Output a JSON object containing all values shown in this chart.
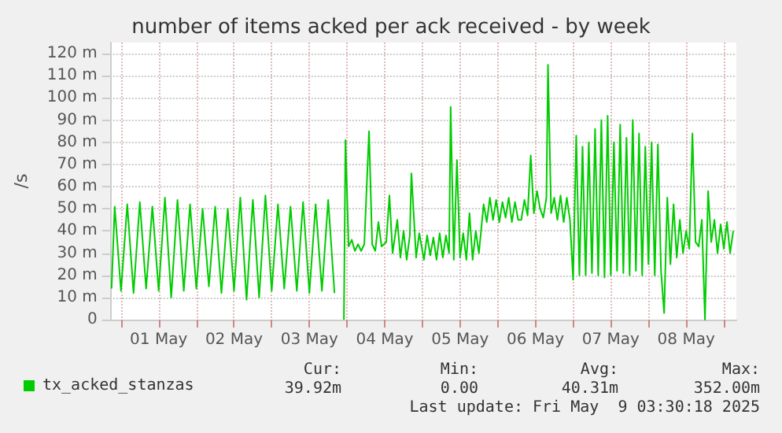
{
  "chart_data": {
    "type": "line",
    "title": "number of items acked per ack received - by week",
    "ylabel": "/s",
    "xlim": [
      "2025-04-30T20:30",
      "2025-05-09T04:00"
    ],
    "xticks": [
      {
        "value": "2025-05-01T00:00",
        "label": null
      },
      {
        "value": "2025-05-01T12:00",
        "label": "01 May"
      },
      {
        "value": "2025-05-02T00:00",
        "label": null
      },
      {
        "value": "2025-05-02T12:00",
        "label": "02 May"
      },
      {
        "value": "2025-05-03T00:00",
        "label": null
      },
      {
        "value": "2025-05-03T12:00",
        "label": "03 May"
      },
      {
        "value": "2025-05-04T00:00",
        "label": null
      },
      {
        "value": "2025-05-04T12:00",
        "label": "04 May"
      },
      {
        "value": "2025-05-05T00:00",
        "label": null
      },
      {
        "value": "2025-05-05T12:00",
        "label": "05 May"
      },
      {
        "value": "2025-05-06T00:00",
        "label": null
      },
      {
        "value": "2025-05-06T12:00",
        "label": "06 May"
      },
      {
        "value": "2025-05-07T00:00",
        "label": null
      },
      {
        "value": "2025-05-07T12:00",
        "label": "07 May"
      },
      {
        "value": "2025-05-08T00:00",
        "label": null
      },
      {
        "value": "2025-05-08T12:00",
        "label": "08 May"
      },
      {
        "value": "2025-05-09T00:00",
        "label": null
      }
    ],
    "ylim": [
      0,
      125
    ],
    "yticks": [
      0,
      {
        "value": 10,
        "label": "10 m"
      },
      {
        "value": 20,
        "label": "20 m"
      },
      {
        "value": 30,
        "label": "30 m"
      },
      {
        "value": 40,
        "label": "40 m"
      },
      {
        "value": 50,
        "label": "50 m"
      },
      {
        "value": 60,
        "label": "60 m"
      },
      {
        "value": 70,
        "label": "70 m"
      },
      {
        "value": 80,
        "label": "80 m"
      },
      {
        "value": 90,
        "label": "90 m"
      },
      {
        "value": 100,
        "label": "100 m"
      },
      {
        "value": 110,
        "label": "110 m"
      },
      {
        "value": 120,
        "label": "120 m"
      }
    ],
    "grid": true,
    "legend": "bottom left",
    "marker": "none",
    "line_style": "solid",
    "annotations": [
      "Cur:",
      "Min:",
      "Avg:",
      "Max:",
      "39.92m",
      "0.00",
      "40.31m",
      "352.00m",
      "Last update: Fri May  9 03:30:18 2025"
    ],
    "x": [
      "2025-04-30T21:00",
      "2025-04-30T22:00",
      "2025-05-01T00:00",
      "2025-05-01T02:00",
      "2025-05-01T04:00",
      "2025-05-01T06:00",
      "2025-05-01T08:00",
      "2025-05-01T10:00",
      "2025-05-01T12:00",
      "2025-05-01T14:00",
      "2025-05-01T16:00",
      "2025-05-01T18:00",
      "2025-05-01T20:00",
      "2025-05-01T22:00",
      "2025-05-02T00:00",
      "2025-05-02T02:00",
      "2025-05-02T04:00",
      "2025-05-02T06:00",
      "2025-05-02T08:00",
      "2025-05-02T10:00",
      "2025-05-02T12:00",
      "2025-05-02T14:00",
      "2025-05-02T16:00",
      "2025-05-02T18:00",
      "2025-05-02T20:00",
      "2025-05-02T22:00",
      "2025-05-03T00:00",
      "2025-05-03T02:00",
      "2025-05-03T04:00",
      "2025-05-03T06:00",
      "2025-05-03T08:00",
      "2025-05-03T10:00",
      "2025-05-03T12:00",
      "2025-05-03T14:00",
      "2025-05-03T16:00",
      "2025-05-03T18:00",
      "2025-05-03T20:00",
      "2025-05-03T22:00",
      "2025-05-03T23:00",
      "2025-05-03T23:30",
      "2025-05-04T00:30",
      "2025-05-04T01:30",
      "2025-05-04T02:30",
      "2025-05-04T03:30",
      "2025-05-04T04:30",
      "2025-05-04T05:30",
      "2025-05-04T07:00",
      "2025-05-04T08:00",
      "2025-05-04T09:00",
      "2025-05-04T10:00",
      "2025-05-04T11:00",
      "2025-05-04T12:30",
      "2025-05-04T13:30",
      "2025-05-04T14:30",
      "2025-05-04T16:00",
      "2025-05-04T17:00",
      "2025-05-04T18:00",
      "2025-05-04T19:00",
      "2025-05-04T20:00",
      "2025-05-04T20:30",
      "2025-05-04T22:00",
      "2025-05-04T23:00",
      "2025-05-05T00:30",
      "2025-05-05T01:30",
      "2025-05-05T02:30",
      "2025-05-05T03:30",
      "2025-05-05T04:30",
      "2025-05-05T05:30",
      "2025-05-05T06:30",
      "2025-05-05T07:30",
      "2025-05-05T08:30",
      "2025-05-05T09:00",
      "2025-05-05T10:00",
      "2025-05-05T11:00",
      "2025-05-05T12:00",
      "2025-05-05T13:00",
      "2025-05-05T14:00",
      "2025-05-05T15:00",
      "2025-05-05T16:00",
      "2025-05-05T17:00",
      "2025-05-05T18:00",
      "2025-05-05T19:30",
      "2025-05-05T20:30",
      "2025-05-05T21:30",
      "2025-05-05T22:30",
      "2025-05-05T23:30",
      "2025-05-06T00:30",
      "2025-05-06T01:30",
      "2025-05-06T02:30",
      "2025-05-06T03:30",
      "2025-05-06T04:30",
      "2025-05-06T05:30",
      "2025-05-06T06:30",
      "2025-05-06T07:30",
      "2025-05-06T08:30",
      "2025-05-06T09:30",
      "2025-05-06T10:30",
      "2025-05-06T11:30",
      "2025-05-06T12:30",
      "2025-05-06T13:30",
      "2025-05-06T14:30",
      "2025-05-06T15:30",
      "2025-05-06T16:00",
      "2025-05-06T17:00",
      "2025-05-06T18:00",
      "2025-05-06T19:00",
      "2025-05-06T20:00",
      "2025-05-06T21:00",
      "2025-05-06T22:00",
      "2025-05-06T23:00",
      "2025-05-07T00:00",
      "2025-05-07T01:00",
      "2025-05-07T02:00",
      "2025-05-07T03:00",
      "2025-05-07T04:00",
      "2025-05-07T05:00",
      "2025-05-07T06:00",
      "2025-05-07T07:00",
      "2025-05-07T08:00",
      "2025-05-07T09:00",
      "2025-05-07T10:00",
      "2025-05-07T11:00",
      "2025-05-07T12:00",
      "2025-05-07T13:00",
      "2025-05-07T14:00",
      "2025-05-07T15:00",
      "2025-05-07T16:00",
      "2025-05-07T17:00",
      "2025-05-07T18:00",
      "2025-05-07T19:00",
      "2025-05-07T20:00",
      "2025-05-07T21:00",
      "2025-05-07T22:00",
      "2025-05-07T23:00",
      "2025-05-08T00:00",
      "2025-05-08T01:00",
      "2025-05-08T02:00",
      "2025-05-08T03:00",
      "2025-05-08T04:00",
      "2025-05-08T05:00",
      "2025-05-08T06:00",
      "2025-05-08T07:00",
      "2025-05-08T08:00",
      "2025-05-08T09:00",
      "2025-05-08T10:00",
      "2025-05-08T11:00",
      "2025-05-08T12:00",
      "2025-05-08T13:00",
      "2025-05-08T14:00",
      "2025-05-08T15:00",
      "2025-05-08T16:00",
      "2025-05-08T17:00",
      "2025-05-08T18:00",
      "2025-05-08T19:00",
      "2025-05-08T20:00",
      "2025-05-08T21:00",
      "2025-05-08T22:00",
      "2025-05-08T23:00",
      "2025-05-09T00:00",
      "2025-05-09T01:00",
      "2025-05-09T02:00",
      "2025-05-09T03:00"
    ],
    "series": [
      {
        "name": "tx_acked_stanzas",
        "color": "#00cc00",
        "values": [
          14,
          51,
          13,
          52,
          12,
          53,
          14,
          51,
          13,
          55,
          10,
          54,
          13,
          52,
          14,
          50,
          15,
          51,
          12,
          50,
          13,
          55,
          9,
          54,
          10,
          56,
          13,
          52,
          14,
          51,
          13,
          53,
          12,
          52,
          13,
          54,
          12,
          null,
          0,
          81,
          33,
          36,
          31,
          34,
          31,
          34,
          85,
          34,
          31,
          44,
          33,
          35,
          56,
          30,
          45,
          28,
          40,
          27,
          38,
          66,
          28,
          39,
          27,
          38,
          29,
          37,
          27,
          39,
          28,
          38,
          30,
          96,
          27,
          72,
          28,
          39,
          27,
          48,
          27,
          40,
          30,
          52,
          44,
          55,
          45,
          54,
          44,
          53,
          46,
          55,
          44,
          53,
          45,
          45,
          54,
          47,
          74,
          48,
          58,
          50,
          46,
          55,
          115,
          48,
          55,
          45,
          56,
          44,
          55,
          45,
          18,
          83,
          20,
          78,
          20,
          80,
          21,
          86,
          20,
          90,
          19,
          92,
          20,
          80,
          22,
          88,
          21,
          82,
          20,
          90,
          22,
          84,
          20,
          78,
          25,
          80,
          20,
          79,
          22,
          3,
          55,
          25,
          52,
          28,
          45,
          30,
          40,
          32,
          84,
          35,
          33,
          45,
          0,
          58,
          35,
          45,
          30,
          43,
          32,
          44,
          30,
          40
        ]
      }
    ]
  }
}
